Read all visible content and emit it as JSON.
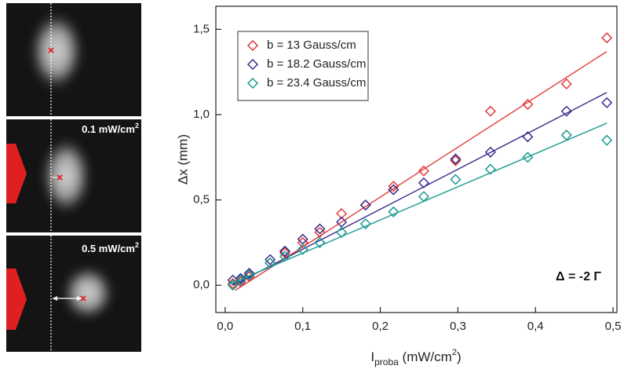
{
  "panels": [
    {
      "label": null
    },
    {
      "label": [
        "0.1 mW/cm",
        "2"
      ]
    },
    {
      "label": [
        "0.5 mW/cm",
        "2"
      ]
    }
  ],
  "chart_data": {
    "type": "scatter",
    "x_label": [
      "I",
      "proba",
      " (mW/cm",
      "2",
      ")"
    ],
    "y_label": "Δx (mm)",
    "annotation": "Δ = -2 Γ",
    "xlim": [
      -0.012,
      0.505
    ],
    "ylim": [
      -0.16,
      1.635
    ],
    "xticks": [
      {
        "value": 0,
        "label": "0,0"
      },
      {
        "value": 0.1,
        "label": "0,1"
      },
      {
        "value": 0.2,
        "label": "0,2"
      },
      {
        "value": 0.3,
        "label": "0,3"
      },
      {
        "value": 0.4,
        "label": "0,4"
      },
      {
        "value": 0.5,
        "label": "0,5"
      }
    ],
    "yticks": [
      {
        "value": 0,
        "label": "0,0"
      },
      {
        "value": 0.5,
        "label": "0,5"
      },
      {
        "value": 1,
        "label": "1,0"
      },
      {
        "value": 1.5,
        "label": "1,5"
      }
    ],
    "x": [
      0.01,
      0.02,
      0.031,
      0.058,
      0.077,
      0.1,
      0.122,
      0.15,
      0.181,
      0.217,
      0.256,
      0.297,
      0.342,
      0.39,
      0.44,
      0.492
    ],
    "series": [
      {
        "name": "b = 13 Gauss/cm",
        "color": "#e03a3a",
        "values": [
          0.01,
          0.02,
          0.05,
          0.13,
          0.19,
          0.25,
          0.31,
          0.42,
          0.47,
          0.58,
          0.67,
          0.73,
          1.02,
          1.06,
          1.18,
          1.45
        ],
        "fit_x": [
          0.013,
          0.492
        ],
        "fit_y": [
          -0.03,
          1.37
        ]
      },
      {
        "name": "b = 18.2 Gauss/cm",
        "color": "#3a2d8c",
        "values": [
          0.03,
          0.04,
          0.07,
          0.15,
          0.2,
          0.27,
          0.33,
          0.37,
          0.47,
          0.56,
          0.6,
          0.74,
          0.78,
          0.87,
          1.02,
          1.07
        ],
        "fit_x": [
          0.01,
          0.492
        ],
        "fit_y": [
          0.0,
          1.13
        ]
      },
      {
        "name": "b = 23.4 Gauss/cm",
        "color": "#1a9a90",
        "values": [
          0.0,
          0.03,
          0.06,
          0.13,
          0.17,
          0.21,
          0.25,
          0.31,
          0.36,
          0.43,
          0.52,
          0.62,
          0.68,
          0.75,
          0.88,
          0.85
        ],
        "fit_x": [
          0.008,
          0.492
        ],
        "fit_y": [
          0.01,
          0.95
        ]
      }
    ]
  }
}
